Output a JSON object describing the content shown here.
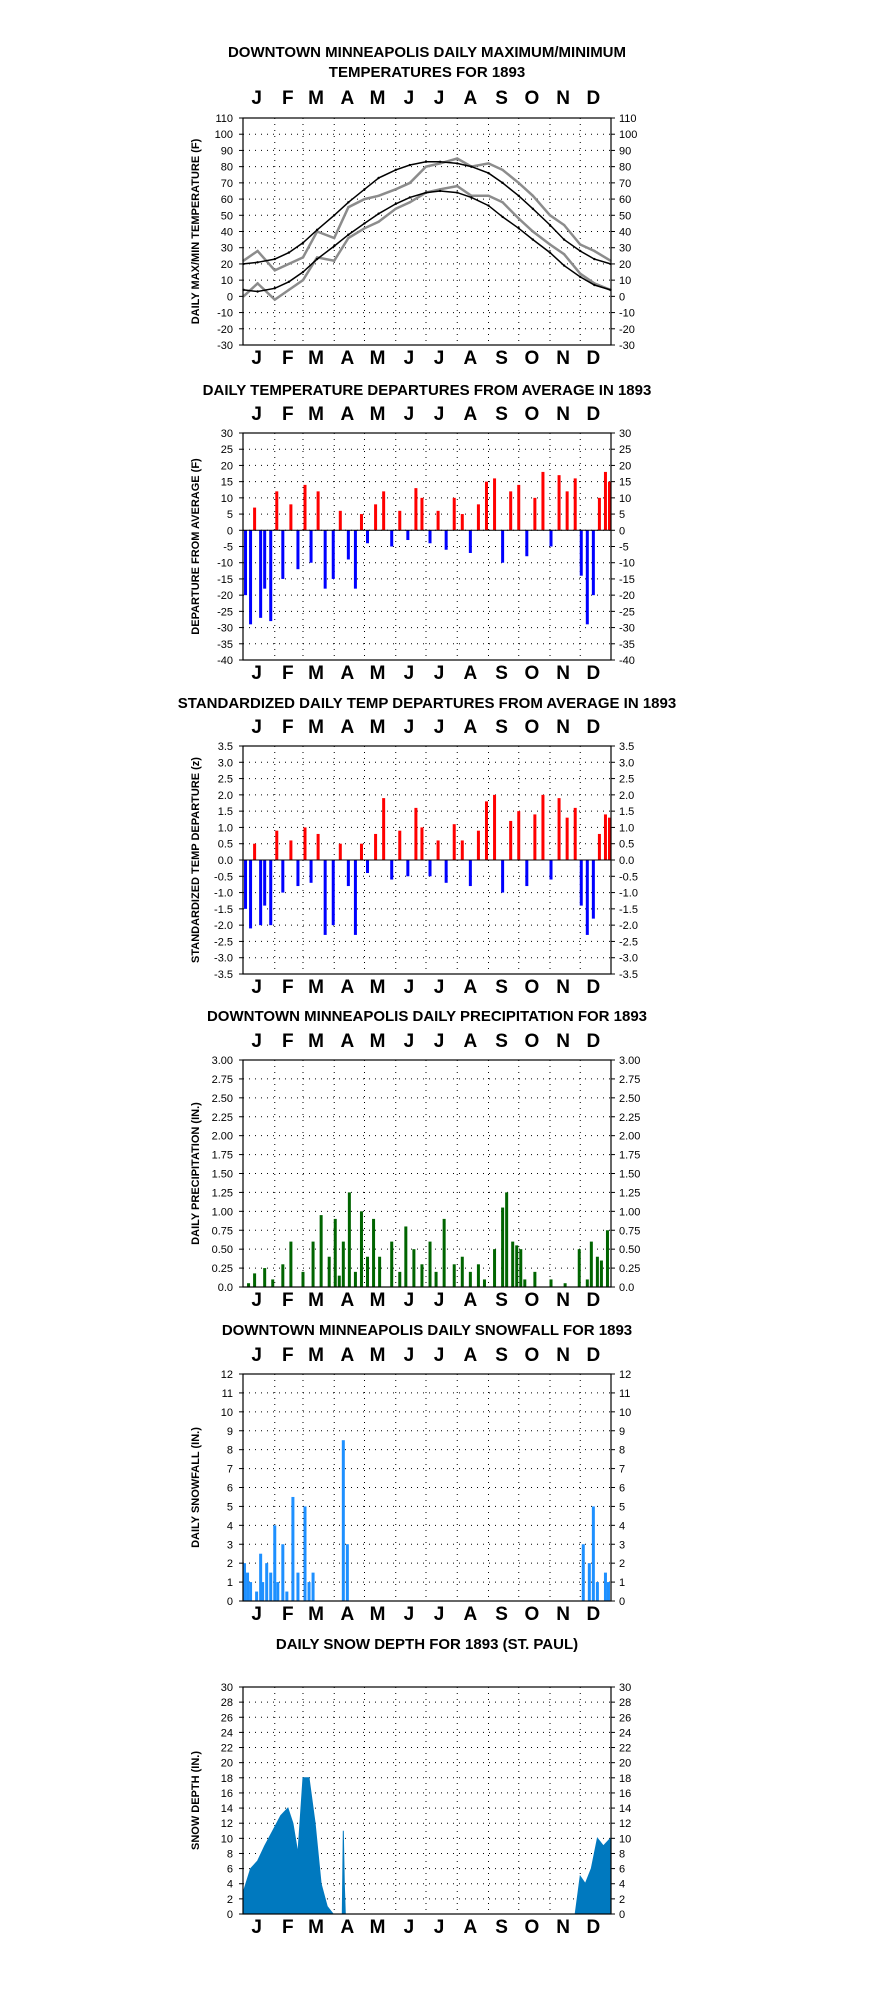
{
  "chart_data": [
    {
      "type": "line",
      "title": [
        "DOWNTOWN MINNEAPOLIS DAILY MAXIMUM/MINIMUM",
        "TEMPERATURES FOR 1893"
      ],
      "ylabel": "DAILY MAX/MIN TEMPERATURE (F)",
      "ylim": [
        -30,
        110
      ],
      "ytick_step": 10,
      "months": [
        "J",
        "F",
        "M",
        "A",
        "M",
        "J",
        "J",
        "A",
        "S",
        "O",
        "N",
        "D"
      ],
      "months_top": true,
      "grid": true,
      "x": [
        1,
        15,
        32,
        46,
        60,
        74,
        91,
        105,
        121,
        135,
        152,
        166,
        182,
        196,
        213,
        227,
        244,
        258,
        274,
        288,
        305,
        319,
        335,
        349,
        365
      ],
      "series": [
        {
          "role": "daily_max",
          "color": "#8c8c8c",
          "values": [
            22,
            28,
            16,
            20,
            24,
            40,
            36,
            55,
            60,
            62,
            66,
            70,
            80,
            82,
            85,
            80,
            82,
            78,
            70,
            62,
            50,
            44,
            32,
            28,
            22
          ]
        },
        {
          "role": "daily_min",
          "color": "#8c8c8c",
          "values": [
            0,
            8,
            -2,
            4,
            10,
            24,
            22,
            36,
            42,
            46,
            54,
            58,
            64,
            66,
            68,
            62,
            62,
            58,
            48,
            40,
            32,
            26,
            14,
            8,
            4
          ]
        },
        {
          "role": "normal_max",
          "color": "#000000",
          "values": [
            20,
            21,
            23,
            27,
            33,
            41,
            50,
            58,
            66,
            73,
            78,
            81,
            83,
            83,
            82,
            80,
            76,
            70,
            62,
            54,
            44,
            35,
            28,
            23,
            20
          ]
        },
        {
          "role": "normal_min",
          "color": "#000000",
          "values": [
            4,
            3,
            5,
            9,
            15,
            23,
            31,
            38,
            45,
            51,
            57,
            61,
            64,
            65,
            64,
            61,
            56,
            49,
            42,
            35,
            27,
            19,
            12,
            7,
            4
          ]
        }
      ]
    },
    {
      "type": "bar",
      "title": "DAILY TEMPERATURE DEPARTURES FROM AVERAGE IN 1893",
      "ylabel": "DEPARTURE FROM AVERAGE (F)",
      "ylim": [
        -40,
        30
      ],
      "ytick_step": 5,
      "months": [
        "J",
        "F",
        "M",
        "A",
        "M",
        "J",
        "J",
        "A",
        "S",
        "O",
        "N",
        "D"
      ],
      "months_top": true,
      "months_bottom": true,
      "grid": true,
      "positive_color": "#ff0000",
      "negative_color": "#0000ff",
      "day": [
        3,
        8,
        12,
        18,
        22,
        28,
        34,
        40,
        48,
        55,
        62,
        68,
        75,
        82,
        90,
        97,
        105,
        112,
        118,
        124,
        132,
        140,
        148,
        156,
        164,
        172,
        178,
        186,
        194,
        202,
        210,
        218,
        226,
        234,
        242,
        250,
        258,
        266,
        274,
        282,
        290,
        298,
        306,
        314,
        322,
        330,
        336,
        342,
        348,
        354,
        360,
        364
      ],
      "values": [
        -20,
        -29,
        7,
        -27,
        -18,
        -28,
        12,
        -15,
        8,
        -12,
        14,
        -10,
        12,
        -18,
        -15,
        6,
        -9,
        -18,
        5,
        -4,
        8,
        12,
        -5,
        6,
        -3,
        13,
        10,
        -4,
        6,
        -6,
        10,
        5,
        -7,
        8,
        15,
        16,
        -10,
        12,
        14,
        -8,
        10,
        18,
        -5,
        17,
        12,
        16,
        -14,
        -29,
        -20,
        10,
        18,
        15
      ]
    },
    {
      "type": "bar",
      "title": "STANDARDIZED DAILY TEMP DEPARTURES FROM AVERAGE IN 1893",
      "ylabel": "STANDARDIZED TEMP DEPARTURE (z)",
      "ylim": [
        -3.5,
        3.5
      ],
      "ytick_step": 0.5,
      "months": [
        "J",
        "F",
        "M",
        "A",
        "M",
        "J",
        "J",
        "A",
        "S",
        "O",
        "N",
        "D"
      ],
      "months_top": true,
      "months_bottom": true,
      "grid": true,
      "positive_color": "#ff0000",
      "negative_color": "#0000ff",
      "day": [
        3,
        8,
        12,
        18,
        22,
        28,
        34,
        40,
        48,
        55,
        62,
        68,
        75,
        82,
        90,
        97,
        105,
        112,
        118,
        124,
        132,
        140,
        148,
        156,
        164,
        172,
        178,
        186,
        194,
        202,
        210,
        218,
        226,
        234,
        242,
        250,
        258,
        266,
        274,
        282,
        290,
        298,
        306,
        314,
        322,
        330,
        336,
        342,
        348,
        354,
        360,
        364
      ],
      "values": [
        -1.5,
        -2.1,
        0.5,
        -2.0,
        -1.4,
        -2.0,
        0.9,
        -1.0,
        0.6,
        -0.8,
        1.0,
        -0.7,
        0.8,
        -2.3,
        -2.0,
        0.5,
        -0.8,
        -2.3,
        0.5,
        -0.4,
        0.8,
        1.9,
        -0.6,
        0.9,
        -0.5,
        1.6,
        1.0,
        -0.5,
        0.6,
        -0.7,
        1.1,
        0.6,
        -0.8,
        0.9,
        1.8,
        2.0,
        -1.0,
        1.2,
        1.5,
        -0.8,
        1.4,
        2.0,
        -0.6,
        1.9,
        1.3,
        1.6,
        -1.4,
        -2.3,
        -1.8,
        0.8,
        1.4,
        1.3
      ]
    },
    {
      "type": "bar",
      "title": "DOWNTOWN MINNEAPOLIS DAILY PRECIPITATION FOR 1893",
      "ylabel": "DAILY PRECIPITATION (IN.)",
      "ylim": [
        0,
        3
      ],
      "ytick_step": 0.25,
      "tick_decimals": 2,
      "zero_label": "0.0",
      "months": [
        "J",
        "F",
        "M",
        "A",
        "M",
        "J",
        "J",
        "A",
        "S",
        "O",
        "N",
        "D"
      ],
      "months_top": true,
      "months_bottom": true,
      "grid": true,
      "color": "#006400",
      "day": [
        6,
        12,
        22,
        30,
        40,
        48,
        60,
        70,
        78,
        86,
        92,
        96,
        100,
        106,
        112,
        118,
        124,
        130,
        136,
        148,
        156,
        162,
        170,
        178,
        186,
        192,
        200,
        210,
        218,
        226,
        234,
        240,
        250,
        258,
        262,
        268,
        272,
        276,
        280,
        290,
        306,
        320,
        334,
        342,
        346,
        352,
        356,
        362
      ],
      "values": [
        0.05,
        0.18,
        0.25,
        0.1,
        0.3,
        0.6,
        0.2,
        0.6,
        0.95,
        0.4,
        0.9,
        0.15,
        0.6,
        1.25,
        0.2,
        1.0,
        0.4,
        0.9,
        0.4,
        0.6,
        0.2,
        0.8,
        0.5,
        0.3,
        0.6,
        0.2,
        0.9,
        0.3,
        0.4,
        0.2,
        0.3,
        0.1,
        0.5,
        1.05,
        1.25,
        0.6,
        0.55,
        0.5,
        0.1,
        0.2,
        0.1,
        0.05,
        0.5,
        0.1,
        0.6,
        0.4,
        0.35,
        0.75
      ]
    },
    {
      "type": "bar",
      "title": "DOWNTOWN MINNEAPOLIS DAILY SNOWFALL FOR 1893",
      "ylabel": "DAILY SNOWFALL (IN.)",
      "ylim": [
        0,
        12
      ],
      "ytick_step": 1,
      "months": [
        "J",
        "F",
        "M",
        "A",
        "M",
        "J",
        "J",
        "A",
        "S",
        "O",
        "N",
        "D"
      ],
      "months_top": true,
      "months_bottom": true,
      "grid": true,
      "color": "#1e90ff",
      "day": [
        2,
        5,
        8,
        14,
        18,
        20,
        24,
        28,
        32,
        35,
        40,
        44,
        50,
        55,
        62,
        66,
        70,
        100,
        104,
        338,
        344,
        348,
        352,
        360,
        363
      ],
      "values": [
        2,
        1.5,
        1,
        0.5,
        2.5,
        1,
        2,
        1.5,
        4,
        1,
        3,
        0.5,
        5.5,
        1.5,
        5,
        1,
        1.5,
        8.5,
        3,
        3,
        2,
        5,
        1,
        1.5,
        1
      ]
    },
    {
      "type": "area",
      "title": "DAILY SNOW DEPTH FOR 1893 (ST. PAUL)",
      "ylabel": "SNOW DEPTH (IN.)",
      "ylim": [
        0,
        30
      ],
      "ytick_step": 2,
      "months": [
        "J",
        "F",
        "M",
        "A",
        "M",
        "J",
        "J",
        "A",
        "S",
        "O",
        "N",
        "D"
      ],
      "months_top": false,
      "months_bottom": true,
      "grid": true,
      "color": "#0079bf",
      "x": [
        1,
        8,
        15,
        22,
        30,
        38,
        45,
        50,
        55,
        60,
        66,
        72,
        78,
        84,
        90,
        95,
        99,
        100,
        101,
        102,
        104,
        330,
        335,
        340,
        346,
        352,
        358,
        365
      ],
      "values": [
        3,
        6,
        7,
        9,
        11,
        13,
        14,
        12,
        8,
        18,
        18,
        12,
        4,
        1,
        0,
        0,
        0,
        11,
        4,
        0,
        0,
        0,
        5,
        4,
        6,
        10,
        9,
        10
      ]
    }
  ]
}
